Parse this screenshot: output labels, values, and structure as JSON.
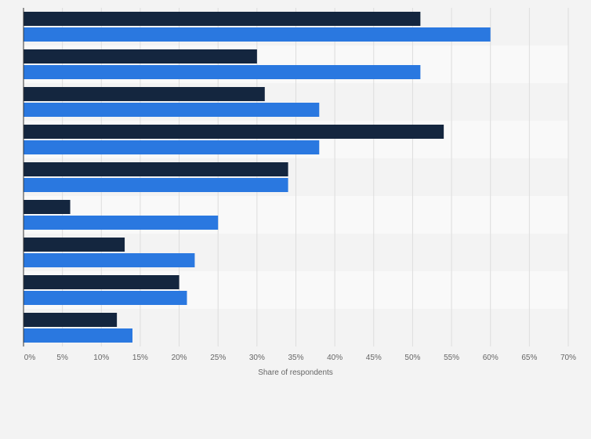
{
  "chart_data": {
    "type": "bar",
    "orientation": "horizontal",
    "xlabel": "Share of respondents",
    "xlim": [
      0,
      70
    ],
    "tick_step": 5,
    "tick_suffix": "%",
    "grid": true,
    "category_count": 9,
    "series": [
      {
        "color": "#14263f",
        "values": [
          51,
          30,
          31,
          54,
          34,
          6,
          13,
          20,
          12
        ]
      },
      {
        "color": "#2a78e0",
        "values": [
          60,
          51,
          38,
          38,
          34,
          25,
          22,
          21,
          14
        ]
      }
    ],
    "band_colors": [
      "#f3f3f3",
      "#f9f9f9"
    ]
  },
  "colors": {
    "background": "#f3f3f3",
    "gridline": "#dddddd",
    "axis": "#333333",
    "text": "#666666"
  }
}
